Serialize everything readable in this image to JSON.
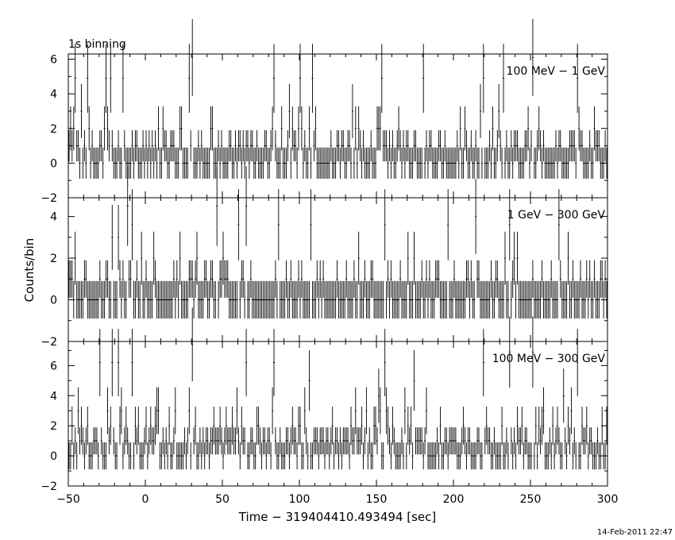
{
  "header": {
    "binning_label": "1s binning"
  },
  "footer": {
    "timestamp": "14-Feb-2011 22:47"
  },
  "chart_data": {
    "type": "line",
    "xlabel": "Time − 319404410.493494 [sec]",
    "ylabel": "Counts/bin",
    "xlim": [
      -50,
      300
    ],
    "x_ticks": [
      -50,
      0,
      50,
      100,
      150,
      200,
      250,
      300
    ],
    "panels": [
      {
        "name": "100 MeV − 1 GeV",
        "ylim": [
          -2,
          6.3
        ],
        "y_ticks": [
          -2,
          0,
          2,
          4,
          6
        ],
        "mean": 0.55,
        "spikes": [
          [
            -46,
            4.9
          ],
          [
            -38,
            4.9
          ],
          [
            -26,
            4.9
          ],
          [
            -23,
            4.9
          ],
          [
            -15,
            4.9
          ],
          [
            28,
            4.9
          ],
          [
            30,
            6.1
          ],
          [
            83,
            4.9
          ],
          [
            100,
            4.9
          ],
          [
            108,
            4.9
          ],
          [
            153,
            4.9
          ],
          [
            180,
            4.9
          ],
          [
            219,
            4.9
          ],
          [
            232,
            4.9
          ],
          [
            251,
            6.1
          ],
          [
            280,
            4.9
          ]
        ]
      },
      {
        "name": "1 GeV − 300 GeV",
        "ylim": [
          -2,
          4.9
        ],
        "y_ticks": [
          -2,
          0,
          2,
          4
        ],
        "mean": 0.35,
        "spikes": [
          [
            -12,
            4.5
          ],
          [
            -9,
            3.6
          ],
          [
            46,
            4.5
          ],
          [
            65,
            4.5
          ],
          [
            60,
            3.6
          ],
          [
            86,
            3.6
          ],
          [
            107,
            3.6
          ],
          [
            155,
            3.6
          ],
          [
            196,
            3.6
          ],
          [
            236,
            3.6
          ],
          [
            268,
            3.6
          ]
        ]
      },
      {
        "name": "100 MeV − 300 GeV",
        "ylim": [
          -2,
          7.6
        ],
        "y_ticks": [
          -2,
          0,
          2,
          4,
          6
        ],
        "mean": 0.9,
        "spikes": [
          [
            -30,
            6.2
          ],
          [
            -22,
            6.2
          ],
          [
            -18,
            6.2
          ],
          [
            -9,
            6.2
          ],
          [
            30,
            7.4
          ],
          [
            65,
            6.2
          ],
          [
            83,
            6.2
          ],
          [
            155,
            6.2
          ],
          [
            219,
            6.2
          ],
          [
            236,
            6.9
          ],
          [
            251,
            6.9
          ],
          [
            280,
            6.2
          ]
        ]
      }
    ]
  }
}
